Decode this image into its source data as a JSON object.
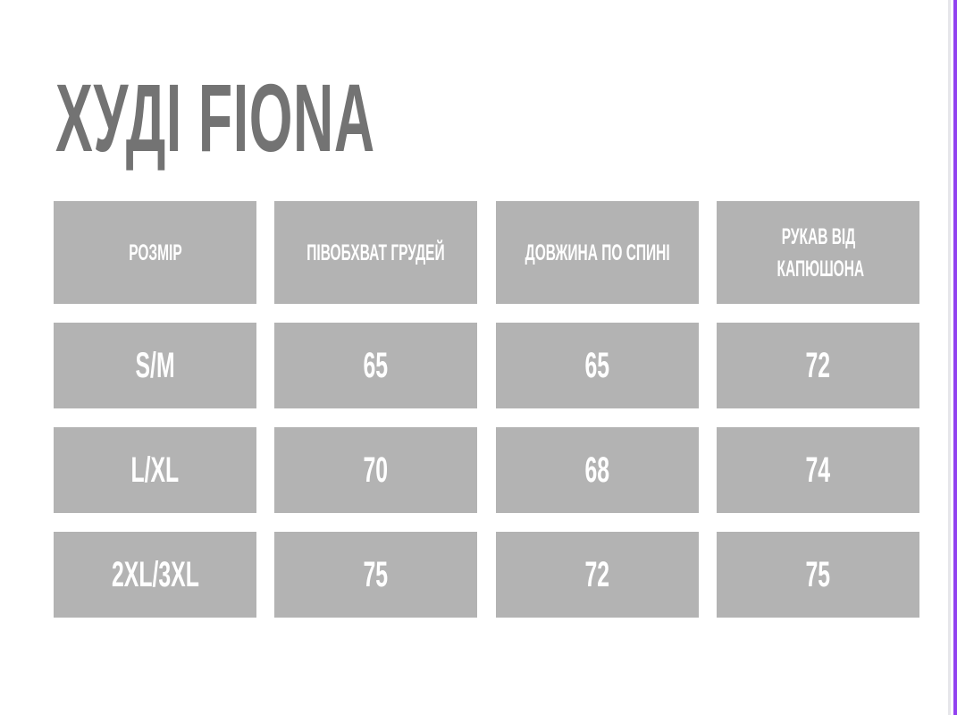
{
  "title": "ХУДІ FIONA",
  "table": {
    "headers": [
      "РОЗМІР",
      "ПІВОБХВАТ ГРУДЕЙ",
      "ДОВЖИНА ПО СПИНІ",
      "РУКАВ ВІД КАПЮШОНА"
    ],
    "rows": [
      [
        "S/M",
        "65",
        "65",
        "72"
      ],
      [
        "L/XL",
        "70",
        "68",
        "74"
      ],
      [
        "2XL/3XL",
        "75",
        "72",
        "75"
      ]
    ]
  },
  "colors": {
    "cell": "#b3b3b3",
    "title": "#737373",
    "accent": "#9142f0"
  }
}
